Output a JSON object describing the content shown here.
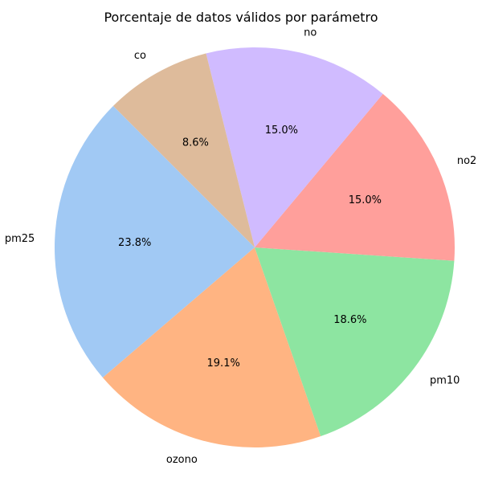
{
  "chart_data": {
    "type": "pie",
    "title": "Porcentaje de datos válidos por parámetro",
    "start_angle_deg": 135,
    "direction": "counterclockwise",
    "slices": [
      {
        "label": "pm25",
        "value": 23.8,
        "pct_text": "23.8%",
        "color": "#a1c9f4"
      },
      {
        "label": "ozono",
        "value": 19.1,
        "pct_text": "19.1%",
        "color": "#ffb482"
      },
      {
        "label": "pm10",
        "value": 18.6,
        "pct_text": "18.6%",
        "color": "#8de5a1"
      },
      {
        "label": "no2",
        "value": 15.0,
        "pct_text": "15.0%",
        "color": "#ff9f9b"
      },
      {
        "label": "no",
        "value": 15.0,
        "pct_text": "15.0%",
        "color": "#d0bbff"
      },
      {
        "label": "co",
        "value": 8.6,
        "pct_text": "8.6%",
        "color": "#debb9b"
      }
    ]
  }
}
